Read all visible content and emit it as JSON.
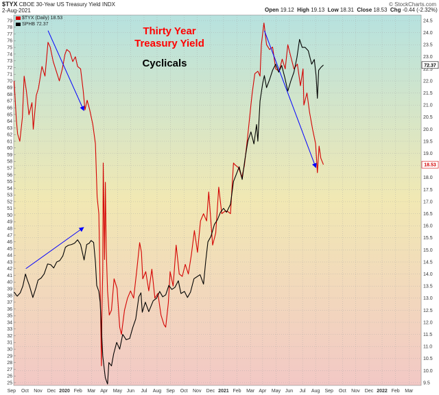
{
  "header": {
    "symbol": "$TYX",
    "name": "CBOE 30-Year US Treasury Yield INDX",
    "date": "2-Aug-2021",
    "open_label": "Open",
    "open": "19.12",
    "high_label": "High",
    "high": "19.13",
    "low_label": "Low",
    "low": "18.31",
    "close_label": "Close",
    "close": "18.53",
    "chg_label": "Chg",
    "chg": "-0.44 (-2.32%)",
    "credit": "© StockCharts.com"
  },
  "legend": [
    {
      "label": "$TYX (Daily) 18.53",
      "color": "#d40000"
    },
    {
      "label": "SPHB 72.37",
      "color": "#000000"
    }
  ],
  "annotations": {
    "title_line1": "Thirty Year",
    "title_line2": "Treasury Yield",
    "subtitle": "Cyclicals",
    "title_color": "#ff0000",
    "subtitle_color": "#000000"
  },
  "chart_data": {
    "type": "line",
    "x_tick_labels": [
      "Sep",
      "Oct",
      "Nov",
      "Dec",
      "2020",
      "Feb",
      "Mar",
      "Apr",
      "May",
      "Jun",
      "Jul",
      "Aug",
      "Sep",
      "Oct",
      "Nov",
      "Dec",
      "2021",
      "Feb",
      "Mar",
      "Apr",
      "May",
      "Jun",
      "Jul",
      "Aug",
      "Sep",
      "Oct",
      "Nov",
      "Dec",
      "2022",
      "Feb",
      "Mar"
    ],
    "x_range": [
      "2019-08-20",
      "2022-03-15"
    ],
    "y_left": {
      "min": 25,
      "max": 79,
      "ticks": [
        25,
        26,
        27,
        28,
        29,
        30,
        31,
        32,
        33,
        34,
        35,
        36,
        37,
        38,
        39,
        40,
        41,
        42,
        43,
        44,
        45,
        46,
        47,
        48,
        49,
        50,
        51,
        52,
        53,
        54,
        55,
        56,
        57,
        58,
        59,
        60,
        61,
        62,
        63,
        64,
        65,
        66,
        67,
        68,
        69,
        70,
        71,
        72,
        73,
        74,
        75,
        76,
        77,
        78,
        79
      ]
    },
    "y_right": {
      "min": 9.5,
      "max": 24.5,
      "ticks": [
        "9.5",
        "10.0",
        "10.5",
        "11.0",
        "11.5",
        "12.0",
        "12.5",
        "13.0",
        "13.5",
        "14.0",
        "14.5",
        "15.0",
        "15.5",
        "16.0",
        "16.5",
        "17.0",
        "17.5",
        "18.0",
        "18.5",
        "19.0",
        "19.5",
        "20.0",
        "20.5",
        "21.0",
        "21.5",
        "22.0",
        "22.5",
        "23.0",
        "23.5",
        "24.0",
        "24.5"
      ]
    },
    "last_values": {
      "tyx": "18.53",
      "sphb": "72.37"
    },
    "series": [
      {
        "name": "$TYX (Daily)",
        "axis": "right",
        "color": "#d40000",
        "points": [
          [
            "2019-08-21",
            22.0
          ],
          [
            "2019-08-26",
            20.4
          ],
          [
            "2019-08-29",
            19.8
          ],
          [
            "2019-09-03",
            19.5
          ],
          [
            "2019-09-09",
            20.5
          ],
          [
            "2019-09-13",
            22.2
          ],
          [
            "2019-09-18",
            21.6
          ],
          [
            "2019-09-24",
            20.6
          ],
          [
            "2019-10-01",
            21.1
          ],
          [
            "2019-10-04",
            20.0
          ],
          [
            "2019-10-11",
            21.4
          ],
          [
            "2019-10-16",
            21.7
          ],
          [
            "2019-10-24",
            22.6
          ],
          [
            "2019-10-31",
            22.2
          ],
          [
            "2019-11-07",
            23.6
          ],
          [
            "2019-11-12",
            23.4
          ],
          [
            "2019-11-19",
            22.8
          ],
          [
            "2019-11-26",
            22.4
          ],
          [
            "2019-12-03",
            22.0
          ],
          [
            "2019-12-10",
            22.5
          ],
          [
            "2019-12-16",
            23.1
          ],
          [
            "2019-12-20",
            23.3
          ],
          [
            "2019-12-27",
            23.2
          ],
          [
            "2020-01-03",
            22.8
          ],
          [
            "2020-01-09",
            23.0
          ],
          [
            "2020-01-14",
            22.6
          ],
          [
            "2020-01-21",
            22.5
          ],
          [
            "2020-01-27",
            21.6
          ],
          [
            "2020-01-31",
            20.8
          ],
          [
            "2020-02-05",
            21.2
          ],
          [
            "2020-02-11",
            20.8
          ],
          [
            "2020-02-18",
            20.2
          ],
          [
            "2020-02-24",
            19.4
          ],
          [
            "2020-02-28",
            17.2
          ],
          [
            "2020-03-03",
            16.5
          ],
          [
            "2020-03-06",
            13.5
          ],
          [
            "2020-03-09",
            10.2
          ],
          [
            "2020-03-10",
            12.5
          ],
          [
            "2020-03-12",
            14.1
          ],
          [
            "2020-03-13",
            18.6
          ],
          [
            "2020-03-16",
            14.6
          ],
          [
            "2020-03-18",
            17.8
          ],
          [
            "2020-03-20",
            15.0
          ],
          [
            "2020-03-23",
            13.3
          ],
          [
            "2020-03-27",
            12.3
          ],
          [
            "2020-04-01",
            12.5
          ],
          [
            "2020-04-07",
            13.8
          ],
          [
            "2020-04-14",
            13.4
          ],
          [
            "2020-04-20",
            11.8
          ],
          [
            "2020-04-24",
            11.5
          ],
          [
            "2020-05-01",
            12.5
          ],
          [
            "2020-05-08",
            13.0
          ],
          [
            "2020-05-15",
            13.3
          ],
          [
            "2020-05-22",
            13.0
          ],
          [
            "2020-05-29",
            14.1
          ],
          [
            "2020-06-05",
            15.3
          ],
          [
            "2020-06-09",
            14.9
          ],
          [
            "2020-06-12",
            13.8
          ],
          [
            "2020-06-19",
            14.1
          ],
          [
            "2020-06-26",
            13.3
          ],
          [
            "2020-07-03",
            14.2
          ],
          [
            "2020-07-10",
            13.0
          ],
          [
            "2020-07-17",
            13.2
          ],
          [
            "2020-07-24",
            12.3
          ],
          [
            "2020-07-31",
            11.9
          ],
          [
            "2020-08-04",
            11.8
          ],
          [
            "2020-08-10",
            12.8
          ],
          [
            "2020-08-14",
            14.1
          ],
          [
            "2020-08-21",
            13.5
          ],
          [
            "2020-08-28",
            15.2
          ],
          [
            "2020-09-04",
            14.0
          ],
          [
            "2020-09-11",
            13.9
          ],
          [
            "2020-09-18",
            14.4
          ],
          [
            "2020-09-25",
            14.0
          ],
          [
            "2020-10-02",
            14.8
          ],
          [
            "2020-10-09",
            15.8
          ],
          [
            "2020-10-16",
            14.9
          ],
          [
            "2020-10-23",
            16.2
          ],
          [
            "2020-10-30",
            16.5
          ],
          [
            "2020-11-06",
            16.2
          ],
          [
            "2020-11-11",
            17.4
          ],
          [
            "2020-11-20",
            15.2
          ],
          [
            "2020-11-27",
            15.7
          ],
          [
            "2020-12-04",
            17.6
          ],
          [
            "2020-12-11",
            16.5
          ],
          [
            "2020-12-18",
            16.6
          ],
          [
            "2020-12-24",
            16.6
          ],
          [
            "2020-12-31",
            16.5
          ],
          [
            "2021-01-07",
            18.6
          ],
          [
            "2021-01-12",
            18.5
          ],
          [
            "2021-01-19",
            18.4
          ],
          [
            "2021-01-26",
            18.0
          ],
          [
            "2021-02-01",
            18.5
          ],
          [
            "2021-02-08",
            19.6
          ],
          [
            "2021-02-16",
            21.0
          ],
          [
            "2021-02-19",
            21.5
          ],
          [
            "2021-02-25",
            22.3
          ],
          [
            "2021-03-04",
            22.4
          ],
          [
            "2021-03-09",
            22.2
          ],
          [
            "2021-03-12",
            23.5
          ],
          [
            "2021-03-18",
            24.4
          ],
          [
            "2021-03-24",
            23.5
          ],
          [
            "2021-03-31",
            23.3
          ],
          [
            "2021-04-07",
            23.4
          ],
          [
            "2021-04-14",
            22.5
          ],
          [
            "2021-04-22",
            22.4
          ],
          [
            "2021-04-29",
            22.9
          ],
          [
            "2021-05-06",
            22.5
          ],
          [
            "2021-05-12",
            23.5
          ],
          [
            "2021-05-19",
            23.0
          ],
          [
            "2021-05-26",
            22.5
          ],
          [
            "2021-06-03",
            22.7
          ],
          [
            "2021-06-10",
            21.8
          ],
          [
            "2021-06-16",
            22.5
          ],
          [
            "2021-06-18",
            21.0
          ],
          [
            "2021-06-25",
            21.5
          ],
          [
            "2021-07-01",
            20.7
          ],
          [
            "2021-07-08",
            20.0
          ],
          [
            "2021-07-15",
            19.4
          ],
          [
            "2021-07-19",
            18.2
          ],
          [
            "2021-07-23",
            19.3
          ],
          [
            "2021-07-27",
            18.8
          ],
          [
            "2021-08-02",
            18.53
          ]
        ]
      },
      {
        "name": "SPHB",
        "axis": "left",
        "color": "#000000",
        "points": [
          [
            "2019-08-21",
            38.5
          ],
          [
            "2019-08-28",
            37.9
          ],
          [
            "2019-09-04",
            38.4
          ],
          [
            "2019-09-10",
            39.4
          ],
          [
            "2019-09-16",
            41.2
          ],
          [
            "2019-09-20",
            40.4
          ],
          [
            "2019-09-25",
            39.5
          ],
          [
            "2019-10-03",
            37.7
          ],
          [
            "2019-10-10",
            39.1
          ],
          [
            "2019-10-15",
            40.3
          ],
          [
            "2019-10-22",
            40.6
          ],
          [
            "2019-10-29",
            41.2
          ],
          [
            "2019-11-06",
            42.7
          ],
          [
            "2019-11-13",
            42.6
          ],
          [
            "2019-11-20",
            42.1
          ],
          [
            "2019-11-27",
            43.0
          ],
          [
            "2019-12-04",
            43.2
          ],
          [
            "2019-12-11",
            43.9
          ],
          [
            "2019-12-17",
            45.2
          ],
          [
            "2019-12-24",
            45.5
          ],
          [
            "2019-12-31",
            45.6
          ],
          [
            "2020-01-07",
            45.8
          ],
          [
            "2020-01-14",
            46.3
          ],
          [
            "2020-01-21",
            45.6
          ],
          [
            "2020-01-29",
            43.3
          ],
          [
            "2020-02-04",
            45.6
          ],
          [
            "2020-02-10",
            45.8
          ],
          [
            "2020-02-14",
            46.2
          ],
          [
            "2020-02-20",
            45.9
          ],
          [
            "2020-02-24",
            43.0
          ],
          [
            "2020-02-27",
            39.5
          ],
          [
            "2020-03-03",
            38.6
          ],
          [
            "2020-03-06",
            37.0
          ],
          [
            "2020-03-09",
            33.0
          ],
          [
            "2020-03-12",
            29.0
          ],
          [
            "2020-03-16",
            26.7
          ],
          [
            "2020-03-18",
            25.7
          ],
          [
            "2020-03-23",
            24.8
          ],
          [
            "2020-03-26",
            28.0
          ],
          [
            "2020-04-01",
            27.5
          ],
          [
            "2020-04-06",
            29.3
          ],
          [
            "2020-04-13",
            31.0
          ],
          [
            "2020-04-20",
            30.0
          ],
          [
            "2020-04-27",
            32.2
          ],
          [
            "2020-05-05",
            31.4
          ],
          [
            "2020-05-13",
            31.6
          ],
          [
            "2020-05-20",
            33.2
          ],
          [
            "2020-05-27",
            34.5
          ],
          [
            "2020-06-03",
            37.8
          ],
          [
            "2020-06-08",
            38.4
          ],
          [
            "2020-06-11",
            35.5
          ],
          [
            "2020-06-18",
            37.0
          ],
          [
            "2020-06-26",
            35.6
          ],
          [
            "2020-07-06",
            37.2
          ],
          [
            "2020-07-14",
            37.6
          ],
          [
            "2020-07-21",
            38.6
          ],
          [
            "2020-07-28",
            37.8
          ],
          [
            "2020-08-04",
            38.1
          ],
          [
            "2020-08-11",
            39.5
          ],
          [
            "2020-08-18",
            38.9
          ],
          [
            "2020-08-25",
            39.2
          ],
          [
            "2020-09-02",
            40.2
          ],
          [
            "2020-09-08",
            38.3
          ],
          [
            "2020-09-16",
            38.6
          ],
          [
            "2020-09-23",
            37.7
          ],
          [
            "2020-09-30",
            38.5
          ],
          [
            "2020-10-08",
            40.5
          ],
          [
            "2020-10-15",
            40.8
          ],
          [
            "2020-10-22",
            41.1
          ],
          [
            "2020-10-30",
            39.7
          ],
          [
            "2020-11-04",
            43.1
          ],
          [
            "2020-11-09",
            46.0
          ],
          [
            "2020-11-16",
            46.8
          ],
          [
            "2020-11-24",
            48.6
          ],
          [
            "2020-12-01",
            49.3
          ],
          [
            "2020-12-08",
            50.4
          ],
          [
            "2020-12-15",
            51.0
          ],
          [
            "2020-12-22",
            50.4
          ],
          [
            "2020-12-31",
            51.6
          ],
          [
            "2021-01-07",
            55.0
          ],
          [
            "2021-01-13",
            56.0
          ],
          [
            "2021-01-20",
            57.2
          ],
          [
            "2021-01-27",
            55.3
          ],
          [
            "2021-02-02",
            58.2
          ],
          [
            "2021-02-09",
            61.0
          ],
          [
            "2021-02-16",
            62.4
          ],
          [
            "2021-02-23",
            60.6
          ],
          [
            "2021-03-01",
            63.5
          ],
          [
            "2021-03-04",
            61.0
          ],
          [
            "2021-03-09",
            67.0
          ],
          [
            "2021-03-15",
            69.6
          ],
          [
            "2021-03-19",
            70.8
          ],
          [
            "2021-03-24",
            69.0
          ],
          [
            "2021-03-31",
            70.2
          ],
          [
            "2021-04-07",
            71.6
          ],
          [
            "2021-04-14",
            72.5
          ],
          [
            "2021-04-21",
            71.3
          ],
          [
            "2021-04-28",
            72.3
          ],
          [
            "2021-05-05",
            70.5
          ],
          [
            "2021-05-12",
            68.5
          ],
          [
            "2021-05-19",
            70.0
          ],
          [
            "2021-05-26",
            71.3
          ],
          [
            "2021-06-02",
            73.5
          ],
          [
            "2021-06-08",
            76.2
          ],
          [
            "2021-06-14",
            75.0
          ],
          [
            "2021-06-21",
            75.0
          ],
          [
            "2021-06-28",
            74.5
          ],
          [
            "2021-07-06",
            72.5
          ],
          [
            "2021-07-12",
            73.2
          ],
          [
            "2021-07-16",
            70.8
          ],
          [
            "2021-07-19",
            67.4
          ],
          [
            "2021-07-22",
            71.6
          ],
          [
            "2021-07-27",
            72.0
          ],
          [
            "2021-08-02",
            72.37
          ]
        ]
      }
    ],
    "arrows": [
      {
        "color": "#0000ff",
        "from": [
          "2019-11-07",
          77.5
        ],
        "to": [
          "2020-01-29",
          65.5
        ]
      },
      {
        "color": "#0000ff",
        "from": [
          "2019-09-17",
          42.0
        ],
        "to": [
          "2020-01-29",
          48.2
        ]
      },
      {
        "color": "#0000ff",
        "from": [
          "2021-03-19",
          77.5
        ],
        "to": [
          "2021-07-16",
          57.0
        ]
      }
    ]
  }
}
